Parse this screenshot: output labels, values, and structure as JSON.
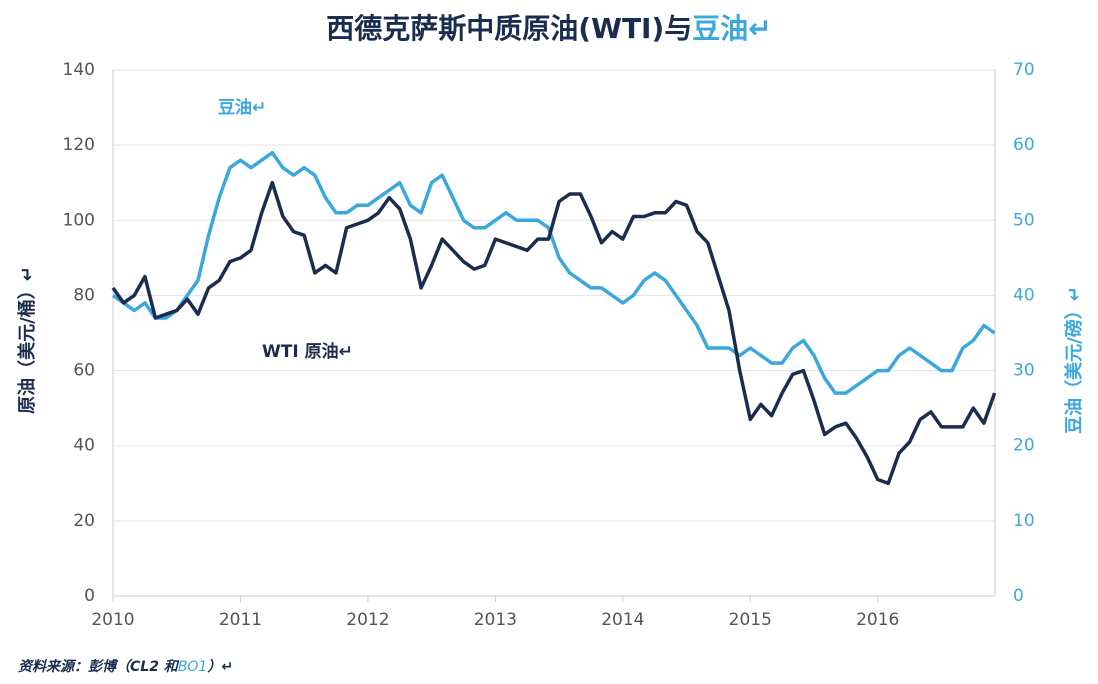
{
  "chart_data": {
    "type": "line",
    "title": "西德克萨斯中质原油(WTI)与",
    "title_highlight": "豆油↵",
    "y_label": "原油（美元/桶）↵",
    "y2_label": "豆油（美元/磅）↵",
    "source": "资料来源：彭博（CL2 和",
    "source_highlight": "BO1",
    "source_end": "）↵",
    "annotations": [
      {
        "text": "豆油↵",
        "color": "#3aa8dc"
      },
      {
        "text": "WTI 原油↵",
        "color": "#1b2d4f"
      }
    ],
    "x": [
      2010,
      2010.083,
      2010.167,
      2010.25,
      2010.333,
      2010.417,
      2010.5,
      2010.583,
      2010.667,
      2010.75,
      2010.833,
      2010.917,
      2011,
      2011.083,
      2011.167,
      2011.25,
      2011.333,
      2011.417,
      2011.5,
      2011.583,
      2011.667,
      2011.75,
      2011.833,
      2011.917,
      2012,
      2012.083,
      2012.167,
      2012.25,
      2012.333,
      2012.417,
      2012.5,
      2012.583,
      2012.667,
      2012.75,
      2012.833,
      2012.917,
      2013,
      2013.083,
      2013.167,
      2013.25,
      2013.333,
      2013.417,
      2013.5,
      2013.583,
      2013.667,
      2013.75,
      2013.833,
      2013.917,
      2014,
      2014.083,
      2014.167,
      2014.25,
      2014.333,
      2014.417,
      2014.5,
      2014.583,
      2014.667,
      2014.75,
      2014.833,
      2014.917,
      2015,
      2015.083,
      2015.167,
      2015.25,
      2015.333,
      2015.417,
      2015.5,
      2015.583,
      2015.667,
      2015.75,
      2015.833,
      2015.917,
      2016,
      2016.083,
      2016.167,
      2016.25,
      2016.333,
      2016.417,
      2016.5,
      2016.583,
      2016.667,
      2016.75,
      2016.833,
      2016.917
    ],
    "series": [
      {
        "name": "WTI 原油",
        "color": "#1b2d4f",
        "values": [
          82,
          78,
          80,
          85,
          74,
          75,
          76,
          79,
          75,
          82,
          84,
          89,
          90,
          92,
          102,
          110,
          101,
          97,
          96,
          86,
          88,
          86,
          98,
          99,
          100,
          102,
          106,
          103,
          95,
          82,
          88,
          95,
          92,
          89,
          87,
          88,
          95,
          94,
          93,
          92,
          95,
          95,
          105,
          107,
          107,
          101,
          94,
          97,
          95,
          101,
          101,
          102,
          102,
          105,
          104,
          97,
          94,
          85,
          76,
          60,
          47,
          51,
          48,
          54,
          59,
          60,
          52,
          43,
          45,
          46,
          42,
          37,
          31,
          30,
          38,
          41,
          47,
          49,
          45,
          45,
          45,
          50,
          46,
          54
        ]
      },
      {
        "name": "豆油",
        "axis": "y2",
        "color": "#3aa8dc",
        "values": [
          40,
          39,
          38,
          39,
          37,
          37,
          38,
          40,
          42,
          48,
          53,
          57,
          58,
          57,
          58,
          59,
          57,
          56,
          57,
          56,
          53,
          51,
          51,
          52,
          52,
          53,
          54,
          55,
          52,
          51,
          55,
          56,
          53,
          50,
          49,
          49,
          50,
          51,
          50,
          50,
          50,
          49,
          45,
          43,
          42,
          41,
          41,
          40,
          39,
          40,
          42,
          43,
          42,
          40,
          38,
          36,
          33,
          33,
          33,
          32,
          33,
          32,
          31,
          31,
          33,
          34,
          32,
          29,
          27,
          27,
          28,
          29,
          30,
          30,
          32,
          33,
          32,
          31,
          30,
          30,
          33,
          34,
          36,
          35
        ]
      }
    ],
    "xlim": [
      2010,
      2016.92
    ],
    "xticks": [
      2010,
      2011,
      2012,
      2013,
      2014,
      2015,
      2016
    ],
    "ylim": [
      0,
      140
    ],
    "yticks": [
      0,
      20,
      40,
      60,
      80,
      100,
      120,
      140
    ],
    "y2lim": [
      0,
      70
    ],
    "y2ticks": [
      0,
      10,
      20,
      30,
      40,
      50,
      60,
      70
    ],
    "grid": true
  }
}
